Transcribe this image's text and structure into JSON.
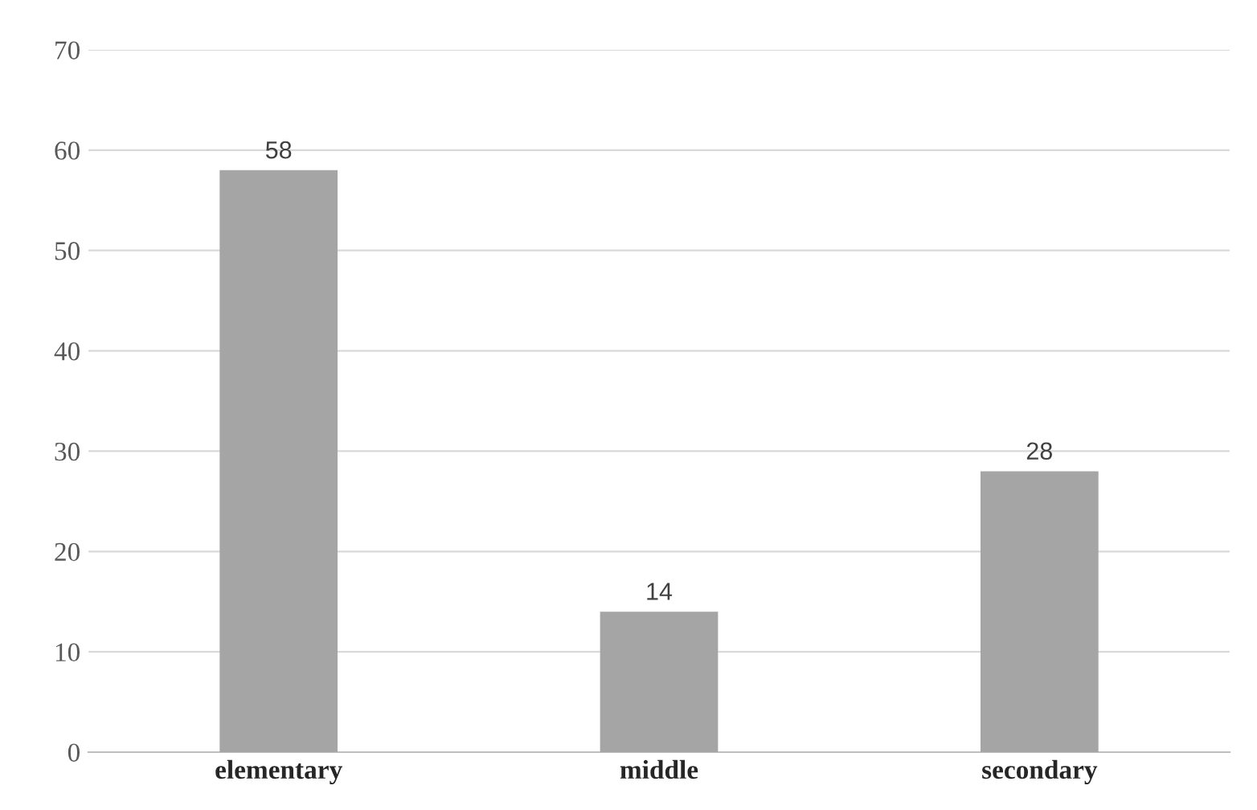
{
  "chart_data": {
    "type": "bar",
    "categories": [
      "elementary",
      "middle",
      "secondary"
    ],
    "values": [
      58,
      14,
      28
    ],
    "color": "#a5a5a5",
    "ylim": [
      0,
      70
    ],
    "yticks": [
      0,
      10,
      20,
      30,
      40,
      50,
      60,
      70
    ],
    "grid": "y",
    "data_labels": true,
    "legend": false
  }
}
